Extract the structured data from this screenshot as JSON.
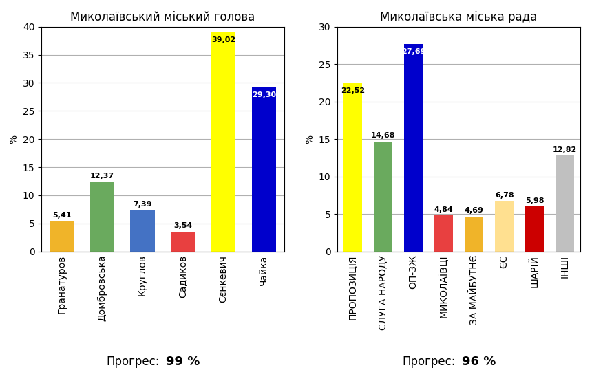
{
  "chart_data": [
    {
      "type": "bar",
      "title": "Миколаївський міський голова",
      "categories": [
        "Гранатуров",
        "Домбровська",
        "Круглов",
        "Садиков",
        "Сєнкевич",
        "Чайка"
      ],
      "values": [
        5.41,
        12.37,
        7.39,
        3.54,
        39.02,
        29.3
      ],
      "value_labels": [
        "5,41",
        "12,37",
        "7,39",
        "3,54",
        "39,02",
        "29,30"
      ],
      "colors": [
        "#f0b429",
        "#6aaa5e",
        "#4472c4",
        "#e84040",
        "#ffff00",
        "#0000cc"
      ],
      "ylim": [
        0,
        40
      ],
      "yticks": [
        0,
        5,
        10,
        15,
        20,
        25,
        30,
        35,
        40
      ],
      "y_label": "%",
      "grid": true,
      "data_labels": true,
      "annotations": [
        "Прогрес:",
        "99 %"
      ]
    },
    {
      "type": "bar",
      "title": "Миколаївська міська рада",
      "categories": [
        "ПРОПОЗИЦІЯ",
        "СЛУГА НАРОДУ",
        "ОП-ЗЖ",
        "МИКОЛАЇВЦІ",
        "ЗА МАЙБУТНЄ",
        "ЄС",
        "ШАРІЙ",
        "ІНШІ"
      ],
      "values": [
        22.52,
        14.68,
        27.69,
        4.84,
        4.69,
        6.78,
        5.98,
        12.82
      ],
      "value_labels": [
        "22,52",
        "14,68",
        "27,69",
        "4,84",
        "4,69",
        "6,78",
        "5,98",
        "12,82"
      ],
      "colors": [
        "#ffff00",
        "#6aaa5e",
        "#0000cc",
        "#e84040",
        "#f0b429",
        "#ffe090",
        "#cc0000",
        "#c0c0c0"
      ],
      "ylim": [
        0,
        30
      ],
      "yticks": [
        0,
        5,
        10,
        15,
        20,
        25,
        30
      ],
      "y_label": "%",
      "grid": true,
      "data_labels": true,
      "annotations": [
        "Прогрес:",
        "96 %"
      ]
    }
  ]
}
